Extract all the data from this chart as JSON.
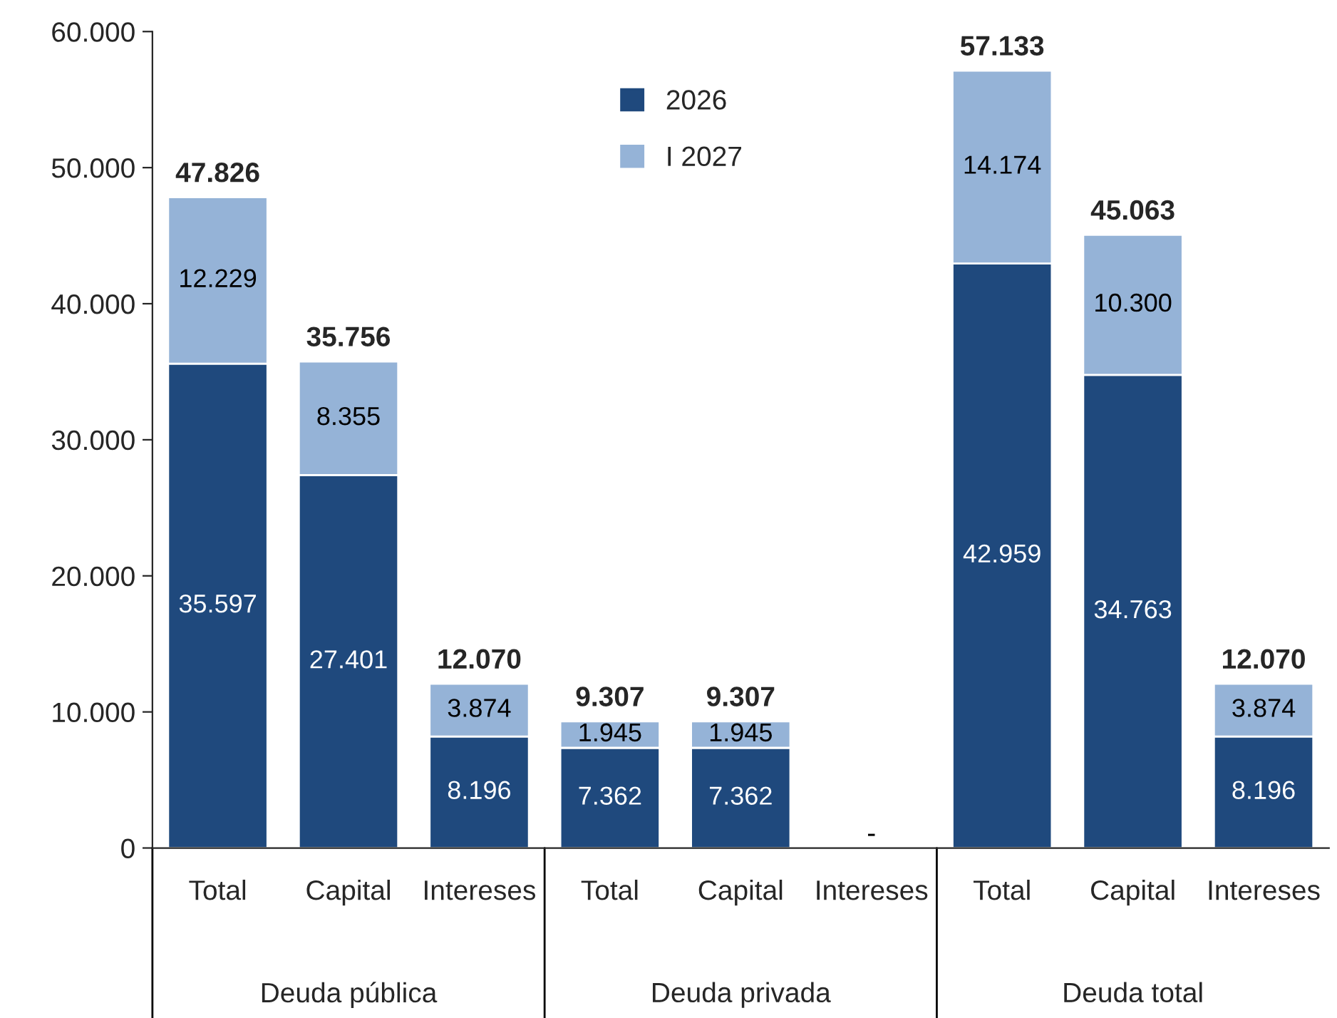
{
  "chart_data": {
    "type": "bar",
    "stacked": true,
    "categories": [
      "Total",
      "Capital",
      "Intereses",
      "Total",
      "Capital",
      "Intereses",
      "Total",
      "Capital",
      "Intereses"
    ],
    "series": [
      {
        "name": "2026",
        "color": "#1f497d",
        "values": [
          35597,
          27401,
          8196,
          7362,
          7362,
          null,
          42959,
          34763,
          8196
        ],
        "value_labels": [
          "35.597",
          "27.401",
          "8.196",
          "7.362",
          "7.362",
          "-",
          "42.959",
          "34.763",
          "8.196"
        ]
      },
      {
        "name": "I 2027",
        "color": "#95b3d7",
        "values": [
          12229,
          8355,
          3874,
          1945,
          1945,
          null,
          14174,
          10300,
          3874
        ],
        "value_labels": [
          "12.229",
          "8.355",
          "3.874",
          "1.945",
          "1.945",
          null,
          "14.174",
          "10.300",
          "3.874"
        ]
      }
    ],
    "totals": [
      "47.826",
      "35.756",
      "12.070",
      "9.307",
      "9.307",
      null,
      "57.133",
      "45.063",
      "12.070"
    ],
    "annotations": [
      "Deuda pública",
      "Deuda privada",
      "Deuda total"
    ],
    "ylim": [
      0,
      60000
    ],
    "yticks": [
      0,
      {
        "value": 10000,
        "label": "10.000"
      },
      {
        "value": 20000,
        "label": "20.000"
      },
      {
        "value": 30000,
        "label": "30.000"
      },
      {
        "value": 40000,
        "label": "40.000"
      },
      {
        "value": 50000,
        "label": "50.000"
      },
      {
        "value": 60000,
        "label": "60.000"
      }
    ],
    "legend": "top center",
    "grid": false
  }
}
